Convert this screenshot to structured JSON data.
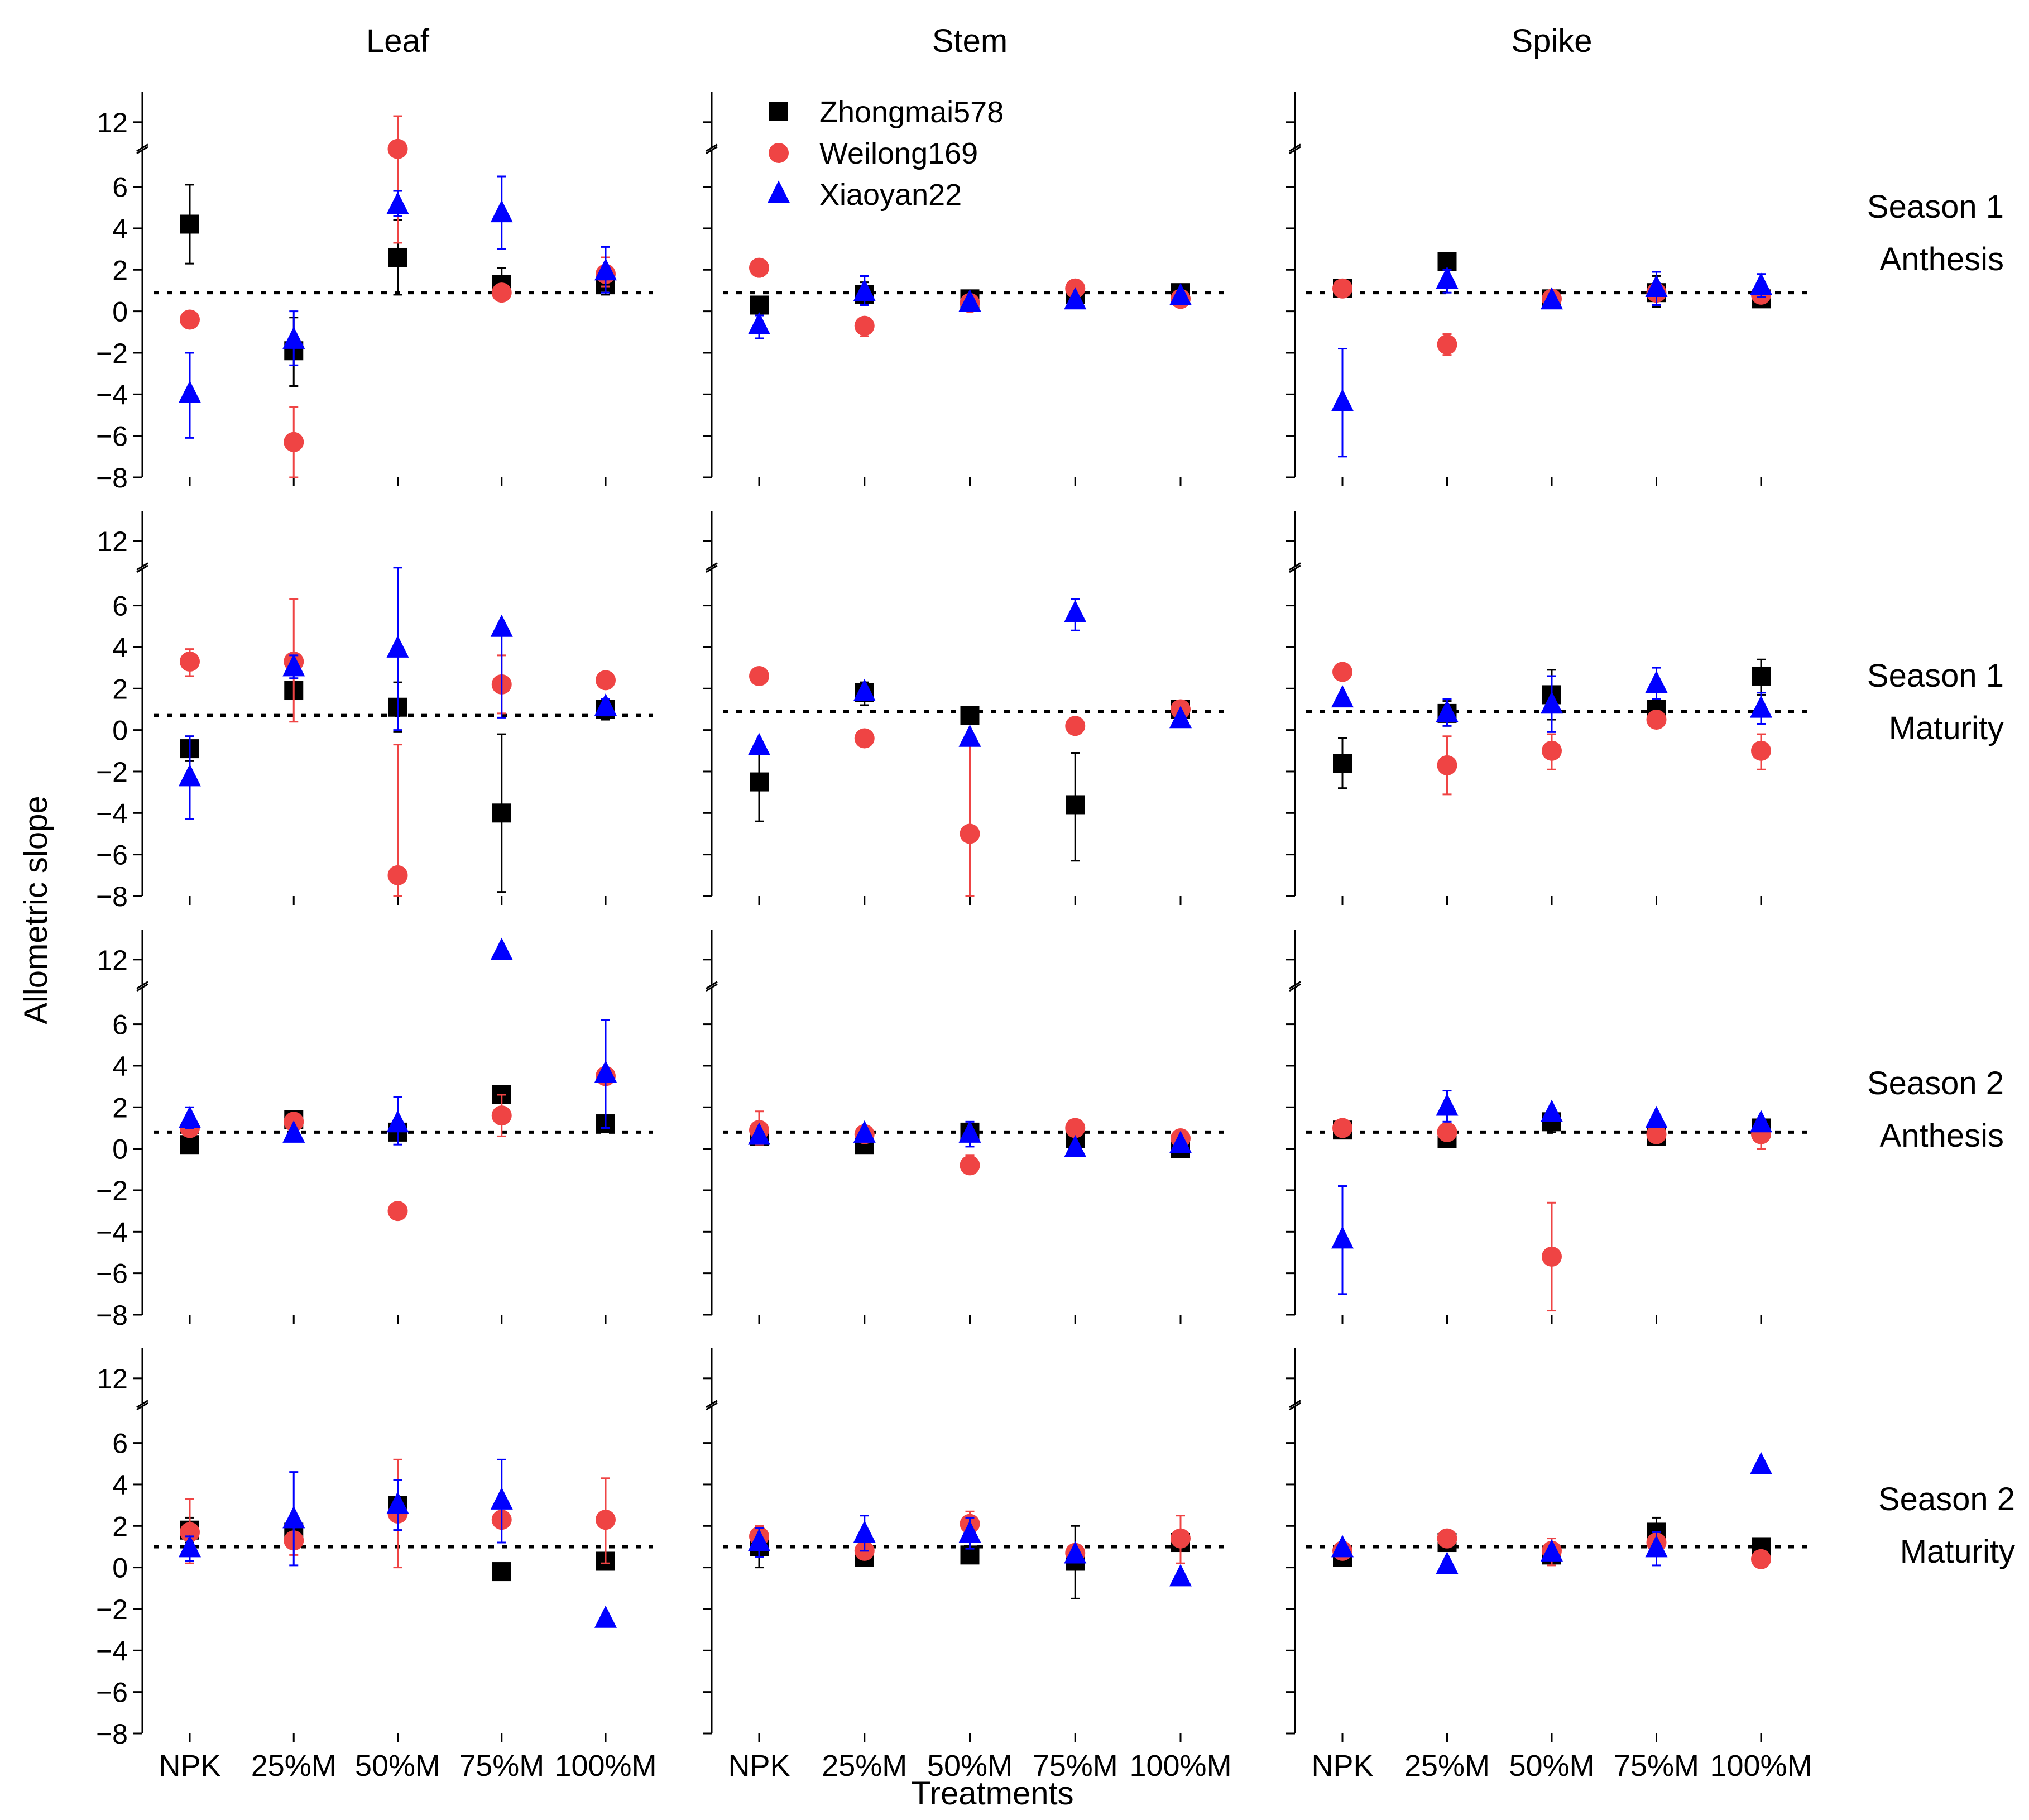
{
  "figure": {
    "ylabel": "Allometric slope",
    "xlabel": "Treatments",
    "colors": {
      "Zhongmai578": "#000000",
      "Weilong169": "#ef4444",
      "Xiaoyan22": "#0000ff"
    }
  },
  "chart_data": {
    "type": "scatter",
    "categories": [
      "NPK",
      "25%M",
      "50%M",
      "75%M",
      "100%M"
    ],
    "columns": [
      "Leaf",
      "Stem",
      "Spike"
    ],
    "rows": [
      {
        "label": "Season 1\nAnthesis"
      },
      {
        "label": "Season 1\nMaturity"
      },
      {
        "label": "Season 2\nAnthesis"
      },
      {
        "label": "Season 2\nMaturity"
      }
    ],
    "yticks": [
      -8,
      -6,
      -4,
      -2,
      0,
      2,
      4,
      6,
      12
    ],
    "ylim": [
      -8,
      13.5
    ],
    "axis_break": [
      7.5,
      11
    ],
    "legend": [
      {
        "name": "Zhongmai578",
        "marker": "square",
        "color": "#000000"
      },
      {
        "name": "Weilong169",
        "marker": "circle",
        "color": "#ef4444"
      },
      {
        "name": "Xiaoyan22",
        "marker": "triangle",
        "color": "#0000ff"
      }
    ],
    "panels": [
      {
        "row": 0,
        "col": 0,
        "ref": 0.9,
        "series": {
          "Zhongmai578": [
            [
              4.2,
              2.3,
              6.1
            ],
            [
              -1.9,
              -3.6,
              -0.3
            ],
            [
              2.6,
              0.8,
              4.4
            ],
            [
              1.3,
              0.5,
              2.1
            ],
            [
              1.4,
              0.8,
              2.0
            ]
          ],
          "Weilong169": [
            [
              -0.4,
              null,
              null
            ],
            [
              -6.3,
              -8,
              -4.6
            ],
            [
              7.7,
              3.3,
              12.3
            ],
            [
              0.9,
              null,
              null
            ],
            [
              1.8,
              1.2,
              2.6
            ]
          ],
          "Xiaoyan22": [
            [
              -4.0,
              -6.1,
              -2.0
            ],
            [
              -1.4,
              -2.6,
              0.0
            ],
            [
              5.1,
              4.6,
              5.8
            ],
            [
              4.7,
              3.0,
              6.5
            ],
            [
              1.9,
              0.9,
              3.1
            ]
          ]
        }
      },
      {
        "row": 0,
        "col": 1,
        "ref": 0.9,
        "series": {
          "Zhongmai578": [
            [
              0.3,
              null,
              null
            ],
            [
              0.8,
              0.3,
              1.4
            ],
            [
              0.6,
              null,
              null
            ],
            [
              0.8,
              null,
              null
            ],
            [
              0.9,
              null,
              null
            ]
          ],
          "Weilong169": [
            [
              2.1,
              1.7,
              2.4
            ],
            [
              -0.7,
              -1.2,
              -0.3
            ],
            [
              0.4,
              null,
              null
            ],
            [
              1.1,
              null,
              null
            ],
            [
              0.6,
              null,
              null
            ]
          ],
          "Xiaoyan22": [
            [
              -0.7,
              -1.3,
              -0.2
            ],
            [
              0.9,
              0.3,
              1.7
            ],
            [
              0.4,
              null,
              null
            ],
            [
              0.5,
              null,
              null
            ],
            [
              0.7,
              null,
              null
            ]
          ]
        }
      },
      {
        "row": 0,
        "col": 2,
        "ref": 0.9,
        "series": {
          "Zhongmai578": [
            [
              1.1,
              null,
              null
            ],
            [
              2.4,
              null,
              null
            ],
            [
              0.6,
              null,
              null
            ],
            [
              0.9,
              0.2,
              1.7
            ],
            [
              0.6,
              null,
              null
            ]
          ],
          "Weilong169": [
            [
              1.1,
              null,
              null
            ],
            [
              -1.6,
              -2.1,
              -1.1
            ],
            [
              0.6,
              null,
              null
            ],
            [
              0.9,
              null,
              null
            ],
            [
              0.8,
              null,
              null
            ]
          ],
          "Xiaoyan22": [
            [
              -4.4,
              -7.0,
              -1.8
            ],
            [
              1.5,
              0.9,
              2.0
            ],
            [
              0.5,
              null,
              null
            ],
            [
              1.1,
              0.3,
              1.9
            ],
            [
              1.2,
              0.7,
              1.8
            ]
          ]
        }
      },
      {
        "row": 1,
        "col": 0,
        "ref": 0.7,
        "series": {
          "Zhongmai578": [
            [
              -0.9,
              -1.5,
              -0.3
            ],
            [
              1.9,
              null,
              null
            ],
            [
              1.1,
              -0.1,
              2.3
            ],
            [
              -4.0,
              -7.8,
              -0.2
            ],
            [
              1.0,
              0.5,
              1.5
            ]
          ],
          "Weilong169": [
            [
              3.3,
              2.6,
              3.9
            ],
            [
              3.3,
              0.4,
              6.3
            ],
            [
              -7.0,
              -8,
              -0.7
            ],
            [
              2.2,
              0.8,
              3.6
            ],
            [
              2.4,
              null,
              null
            ]
          ],
          "Xiaoyan22": [
            [
              -2.3,
              -4.3,
              -0.3
            ],
            [
              3.0,
              2.5,
              3.6
            ],
            [
              3.9,
              0.0,
              8.0
            ],
            [
              4.9,
              0.6,
              5.0
            ],
            [
              1.1,
              0.7,
              1.5
            ]
          ]
        }
      },
      {
        "row": 1,
        "col": 1,
        "ref": 0.9,
        "series": {
          "Zhongmai578": [
            [
              -2.5,
              -4.4,
              -0.6
            ],
            [
              1.8,
              1.2,
              2.3
            ],
            [
              0.7,
              null,
              null
            ],
            [
              -3.6,
              -6.3,
              -1.1
            ],
            [
              1.0,
              0.4,
              1.3
            ]
          ],
          "Weilong169": [
            [
              2.6,
              null,
              null
            ],
            [
              -0.4,
              null,
              null
            ],
            [
              -5.0,
              -8,
              -0.6
            ],
            [
              0.2,
              null,
              null
            ],
            [
              1.0,
              null,
              null
            ]
          ],
          "Xiaoyan22": [
            [
              -0.8,
              null,
              null
            ],
            [
              1.8,
              null,
              null
            ],
            [
              -0.4,
              null,
              null
            ],
            [
              5.6,
              4.8,
              6.3
            ],
            [
              0.5,
              null,
              null
            ]
          ]
        }
      },
      {
        "row": 1,
        "col": 2,
        "ref": 0.9,
        "series": {
          "Zhongmai578": [
            [
              -1.6,
              -2.8,
              -0.4
            ],
            [
              0.8,
              0.2,
              1.4
            ],
            [
              1.7,
              0.5,
              2.9
            ],
            [
              1.0,
              0.4,
              1.3
            ],
            [
              2.6,
              1.7,
              3.4
            ]
          ],
          "Weilong169": [
            [
              2.8,
              null,
              null
            ],
            [
              -1.7,
              -3.1,
              -0.3
            ],
            [
              -1.0,
              -1.9,
              -0.2
            ],
            [
              0.5,
              null,
              null
            ],
            [
              -1.0,
              -1.9,
              -0.2
            ]
          ],
          "Xiaoyan22": [
            [
              1.5,
              null,
              null
            ],
            [
              0.8,
              0.2,
              1.5
            ],
            [
              1.2,
              -0.1,
              2.6
            ],
            [
              2.2,
              1.5,
              3.0
            ],
            [
              1.0,
              0.3,
              1.8
            ]
          ]
        }
      },
      {
        "row": 2,
        "col": 0,
        "ref": 0.8,
        "series": {
          "Zhongmai578": [
            [
              0.2,
              -0.2,
              0.6
            ],
            [
              1.4,
              null,
              null
            ],
            [
              0.8,
              null,
              null
            ],
            [
              2.6,
              null,
              null
            ],
            [
              1.2,
              null,
              null
            ]
          ],
          "Weilong169": [
            [
              1.0,
              null,
              null
            ],
            [
              1.3,
              null,
              null
            ],
            [
              -3.0,
              null,
              null
            ],
            [
              1.6,
              0.6,
              2.6
            ],
            [
              3.5,
              null,
              null
            ]
          ],
          "Xiaoyan22": [
            [
              1.4,
              1.0,
              2.0
            ],
            [
              0.7,
              null,
              null
            ],
            [
              1.2,
              0.2,
              2.5
            ],
            [
              12.4,
              null,
              null
            ],
            [
              3.6,
              1.0,
              6.2
            ]
          ]
        }
      },
      {
        "row": 2,
        "col": 1,
        "ref": 0.8,
        "series": {
          "Zhongmai578": [
            [
              0.6,
              null,
              null
            ],
            [
              0.2,
              null,
              null
            ],
            [
              0.8,
              null,
              null
            ],
            [
              0.5,
              null,
              null
            ],
            [
              0.0,
              null,
              null
            ]
          ],
          "Weilong169": [
            [
              0.9,
              0.2,
              1.8
            ],
            [
              0.7,
              null,
              null
            ],
            [
              -0.8,
              -1.1,
              -0.3
            ],
            [
              1.0,
              null,
              null
            ],
            [
              0.5,
              null,
              null
            ]
          ],
          "Xiaoyan22": [
            [
              0.6,
              null,
              null
            ],
            [
              0.7,
              null,
              null
            ],
            [
              0.7,
              0.1,
              1.3
            ],
            [
              0.0,
              null,
              null
            ],
            [
              0.2,
              null,
              null
            ]
          ]
        }
      },
      {
        "row": 2,
        "col": 2,
        "ref": 0.8,
        "series": {
          "Zhongmai578": [
            [
              0.9,
              null,
              null
            ],
            [
              0.5,
              null,
              null
            ],
            [
              1.3,
              0.8,
              1.9
            ],
            [
              0.6,
              null,
              null
            ],
            [
              1.0,
              null,
              null
            ]
          ],
          "Weilong169": [
            [
              1.0,
              null,
              null
            ],
            [
              0.8,
              null,
              null
            ],
            [
              -5.2,
              -7.8,
              -2.6
            ],
            [
              0.7,
              null,
              null
            ],
            [
              0.7,
              0.0,
              1.4
            ]
          ],
          "Xiaoyan22": [
            [
              -4.4,
              -7.0,
              -1.8
            ],
            [
              2.0,
              1.3,
              2.8
            ],
            [
              1.7,
              null,
              null
            ],
            [
              1.4,
              null,
              null
            ],
            [
              1.2,
              null,
              null
            ]
          ]
        }
      },
      {
        "row": 3,
        "col": 0,
        "ref": 1.0,
        "series": {
          "Zhongmai578": [
            [
              1.8,
              1.2,
              2.4
            ],
            [
              1.7,
              1.2,
              2.2
            ],
            [
              3.0,
              1.8,
              4.2
            ],
            [
              -0.2,
              null,
              null
            ],
            [
              0.3,
              null,
              null
            ]
          ],
          "Weilong169": [
            [
              1.7,
              0.2,
              3.3
            ],
            [
              1.3,
              0.6,
              2.0
            ],
            [
              2.6,
              0.0,
              5.2
            ],
            [
              2.3,
              null,
              null
            ],
            [
              2.3,
              0.2,
              4.3
            ]
          ],
          "Xiaoyan22": [
            [
              0.9,
              0.3,
              1.5
            ],
            [
              2.3,
              0.1,
              4.6
            ],
            [
              3.0,
              1.8,
              4.2
            ],
            [
              3.2,
              1.2,
              5.2
            ],
            [
              -2.5,
              null,
              null
            ]
          ]
        }
      },
      {
        "row": 3,
        "col": 1,
        "ref": 1.0,
        "series": {
          "Zhongmai578": [
            [
              1.0,
              0.0,
              2.0
            ],
            [
              0.5,
              null,
              null
            ],
            [
              0.6,
              null,
              null
            ],
            [
              0.3,
              -1.5,
              2.0
            ],
            [
              1.2,
              null,
              null
            ]
          ],
          "Weilong169": [
            [
              1.5,
              1.0,
              2.0
            ],
            [
              0.8,
              null,
              null
            ],
            [
              2.1,
              1.6,
              2.7
            ],
            [
              0.7,
              null,
              null
            ],
            [
              1.4,
              0.2,
              2.5
            ]
          ],
          "Xiaoyan22": [
            [
              1.2,
              0.5,
              1.9
            ],
            [
              1.6,
              0.8,
              2.5
            ],
            [
              1.6,
              0.9,
              2.4
            ],
            [
              0.6,
              null,
              null
            ],
            [
              -0.5,
              null,
              null
            ]
          ]
        }
      },
      {
        "row": 3,
        "col": 2,
        "ref": 1.0,
        "series": {
          "Zhongmai578": [
            [
              0.5,
              null,
              null
            ],
            [
              1.2,
              null,
              null
            ],
            [
              0.6,
              null,
              null
            ],
            [
              1.7,
              1.0,
              2.4
            ],
            [
              1.0,
              null,
              null
            ]
          ],
          "Weilong169": [
            [
              0.8,
              null,
              null
            ],
            [
              1.4,
              null,
              null
            ],
            [
              0.8,
              0.1,
              1.4
            ],
            [
              1.2,
              null,
              null
            ],
            [
              0.4,
              null,
              null
            ]
          ],
          "Xiaoyan22": [
            [
              0.9,
              null,
              null
            ],
            [
              0.1,
              null,
              null
            ],
            [
              0.7,
              null,
              null
            ],
            [
              0.9,
              0.1,
              1.7
            ],
            [
              4.9,
              null,
              null
            ]
          ]
        }
      }
    ]
  }
}
